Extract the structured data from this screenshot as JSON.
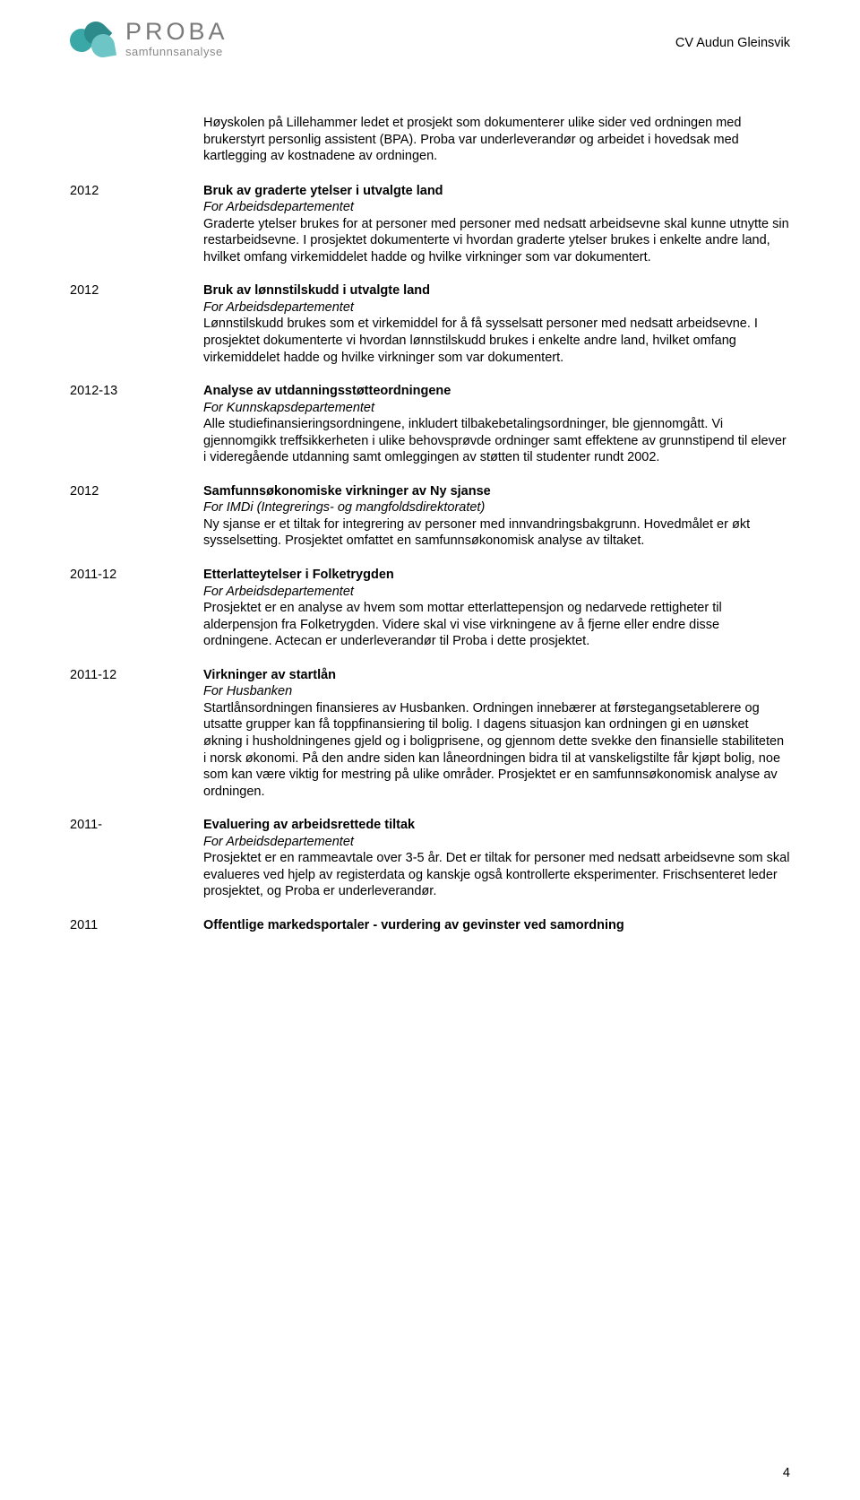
{
  "logo": {
    "title": "PROBA",
    "subtitle": "samfunnsanalyse"
  },
  "header_name": "CV Audun Gleinsvik",
  "intro": "Høyskolen på Lillehammer ledet et prosjekt som dokumenterer ulike sider ved ordningen med brukerstyrt personlig assistent (BPA). Proba var underleverandør og arbeidet i hovedsak med kartlegging av kostnadene av ordningen.",
  "entries": [
    {
      "year": "2012",
      "title": "Bruk av graderte ytelser i utvalgte land",
      "client": "For Arbeidsdepartementet",
      "desc": "Graderte ytelser brukes for at personer med personer med nedsatt arbeidsevne skal kunne utnytte sin restarbeidsevne. I prosjektet dokumenterte vi hvordan graderte ytelser brukes i enkelte andre land, hvilket omfang virkemiddelet hadde og hvilke virkninger som var dokumentert."
    },
    {
      "year": "2012",
      "title": "Bruk av lønnstilskudd i utvalgte land",
      "client": "For Arbeidsdepartementet",
      "desc": "Lønnstilskudd brukes som et virkemiddel for å få sysselsatt personer med nedsatt arbeidsevne. I prosjektet dokumenterte vi hvordan lønnstilskudd brukes i enkelte andre land, hvilket omfang virkemiddelet hadde og hvilke virkninger som var dokumentert."
    },
    {
      "year": "2012-13",
      "title": "Analyse av utdanningsstøtteordningene",
      "client": "For Kunnskapsdepartementet",
      "desc": "Alle studiefinansieringsordningene, inkludert tilbakebetalingsordninger, ble gjennomgått. Vi gjennomgikk treffsikkerheten i ulike behovsprøvde ordninger samt effektene av grunnstipend til elever i videregående utdanning samt omleggingen av støtten til studenter rundt 2002."
    },
    {
      "year": "2012",
      "title": "Samfunnsøkonomiske virkninger av Ny sjanse",
      "client": "For IMDi (Integrerings- og mangfoldsdirektoratet)",
      "desc": "Ny sjanse er et tiltak for integrering av personer med innvandringsbakgrunn. Hovedmålet er økt sysselsetting. Prosjektet omfattet en samfunnsøkonomisk analyse av tiltaket."
    },
    {
      "year": "2011-12",
      "title": "Etterlatteytelser i Folketrygden",
      "client": "For Arbeidsdepartementet",
      "desc": "Prosjektet er en analyse av hvem som mottar etterlattepensjon og nedarvede rettigheter til alderpensjon fra Folketrygden. Videre skal vi vise virkningene av å fjerne eller endre disse ordningene. Actecan er underleverandør til Proba i dette prosjektet."
    },
    {
      "year": "2011-12",
      "title": "Virkninger av startlån",
      "client": "For Husbanken",
      "desc": "Startlånsordningen finansieres av Husbanken. Ordningen innebærer at førstegangsetablerere og utsatte grupper kan få toppfinansiering til bolig. I dagens situasjon kan ordningen gi en uønsket økning i husholdningenes gjeld og i boligprisene, og gjennom dette svekke den finansielle stabiliteten i norsk økonomi. På den andre siden kan låneordningen bidra til at vanskeligstilte får kjøpt bolig, noe som kan være viktig for mestring på ulike områder. Prosjektet er en samfunnsøkonomisk analyse av ordningen."
    },
    {
      "year": "2011-",
      "title": "Evaluering av arbeidsrettede tiltak",
      "client": "For Arbeidsdepartementet",
      "desc": "Prosjektet er en rammeavtale over 3-5 år. Det er tiltak for personer med nedsatt arbeidsevne som skal evalueres ved hjelp av registerdata og kanskje også kontrollerte eksperimenter. Frischsenteret leder prosjektet, og Proba er underleverandør."
    },
    {
      "year": "2011",
      "title": "Offentlige markedsportaler - vurdering av gevinster ved samordning",
      "client": "",
      "desc": ""
    }
  ],
  "page_number": "4"
}
